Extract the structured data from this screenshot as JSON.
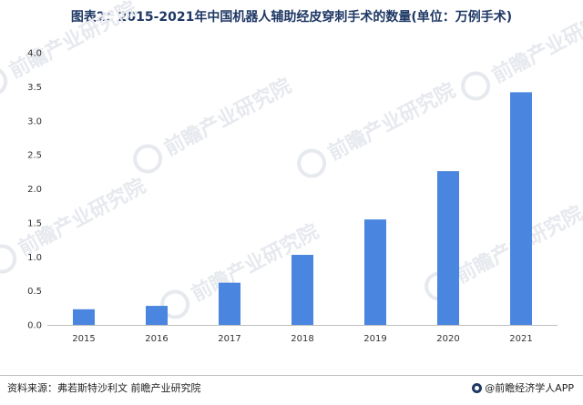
{
  "title": "图表2：2015-2021年中国机器人辅助经皮穿刺手术的数量(单位：万例手术)",
  "source": "资料来源：弗若斯特沙利文 前瞻产业研究院",
  "brand": "@前瞻经济学人APP",
  "watermark_text": "前瞻产业研究院",
  "colors": {
    "bar": "#4a86e0",
    "title": "#1f3864",
    "axis": "#bfbfbf"
  },
  "chart_data": {
    "type": "bar",
    "title": "图表2：2015-2021年中国机器人辅助经皮穿刺手术的数量(单位：万例手术)",
    "xlabel": "",
    "ylabel": "",
    "categories": [
      "2015",
      "2016",
      "2017",
      "2018",
      "2019",
      "2020",
      "2021"
    ],
    "values": [
      0.23,
      0.28,
      0.62,
      1.03,
      1.55,
      2.26,
      3.42
    ],
    "ylim": [
      0,
      4.0
    ],
    "yticks": [
      0.0,
      0.5,
      1.0,
      1.5,
      2.0,
      2.5,
      3.0,
      3.5,
      4.0
    ],
    "ytick_labels": [
      "0.0",
      "0.5",
      "1.0",
      "1.5",
      "2.0",
      "2.5",
      "3.0",
      "3.5",
      "4.0"
    ],
    "grid": false,
    "legend": "none"
  }
}
